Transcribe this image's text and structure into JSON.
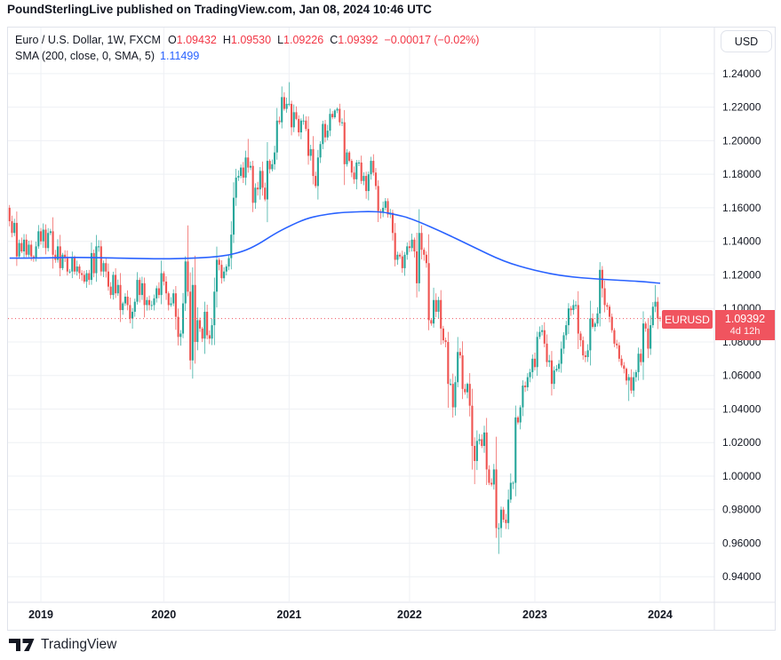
{
  "header": {
    "attribution": "PoundSterlingLive published on TradingView.com, Jan 08, 2024 10:46 UTC"
  },
  "legend": {
    "symbol_title": "Euro / U.S. Dollar, 1W, FXCM",
    "ohlc": [
      {
        "label": "O",
        "value": "1.09432"
      },
      {
        "label": "H",
        "value": "1.09530"
      },
      {
        "label": "L",
        "value": "1.09226"
      },
      {
        "label": "C",
        "value": "1.09392"
      }
    ],
    "change": "−0.00017 (−0.02%)",
    "sma_title": "SMA (200, close, 0, SMA, 5)",
    "sma_value": "1.11499"
  },
  "price_scale": {
    "currency_button": "USD",
    "ticks": [
      "1.24000",
      "1.22000",
      "1.20000",
      "1.18000",
      "1.16000",
      "1.14000",
      "1.12000",
      "1.10000",
      "1.08000",
      "1.06000",
      "1.04000",
      "1.02000",
      "1.00000",
      "0.98000",
      "0.96000",
      "0.94000"
    ],
    "last_price_label": {
      "price": "1.09392",
      "countdown": "4d 12h"
    }
  },
  "time_scale": {
    "ticks": [
      "2019",
      "2020",
      "2021",
      "2022",
      "2023",
      "2024"
    ]
  },
  "price_line": {
    "symbol_tag": "EURUSD",
    "price": 1.09392
  },
  "footer": {
    "brand": "TradingView"
  },
  "colors": {
    "up": "#26A69A",
    "down": "#EF5350",
    "sma": "#2962FF",
    "grid": "#EEF0F4",
    "separator": "#E0E3EB",
    "text": "#131722",
    "value_red": "#F23645",
    "price_line_red": "#F0545F"
  },
  "chart_data": {
    "type": "candlestick",
    "title": "Euro / U.S. Dollar, 1W, FXCM",
    "symbol": "EURUSD",
    "exchange": "FXCM",
    "interval": "1W",
    "ylabel": "USD",
    "ylim": [
      0.9253,
      1.2675
    ],
    "xlim_week_index": [
      -0.65,
      292.5
    ],
    "y_tick_prices": [
      1.24,
      1.22,
      1.2,
      1.18,
      1.16,
      1.14,
      1.12,
      1.1,
      1.08,
      1.06,
      1.04,
      1.02,
      1.0,
      0.98,
      0.96,
      0.94
    ],
    "year_tick_week_indices": [
      13,
      64,
      116,
      166,
      218,
      270
    ],
    "grid": true,
    "first_open": 1.16,
    "weekly_closes": [
      1.152,
      1.145,
      1.151,
      1.131,
      1.139,
      1.134,
      1.141,
      1.132,
      1.138,
      1.131,
      1.13,
      1.137,
      1.146,
      1.14,
      1.147,
      1.136,
      1.145,
      1.146,
      1.132,
      1.129,
      1.137,
      1.124,
      1.132,
      1.13,
      1.122,
      1.122,
      1.13,
      1.122,
      1.125,
      1.121,
      1.12,
      1.116,
      1.121,
      1.117,
      1.133,
      1.121,
      1.137,
      1.137,
      1.122,
      1.127,
      1.122,
      1.113,
      1.108,
      1.12,
      1.109,
      1.114,
      1.099,
      1.103,
      1.107,
      1.102,
      1.094,
      1.098,
      1.104,
      1.117,
      1.108,
      1.115,
      1.102,
      1.105,
      1.102,
      1.102,
      1.106,
      1.112,
      1.108,
      1.121,
      1.116,
      1.109,
      1.102,
      1.103,
      1.109,
      1.095,
      1.083,
      1.085,
      1.103,
      1.128,
      1.11,
      1.069,
      1.114,
      1.08,
      1.093,
      1.088,
      1.082,
      1.098,
      1.084,
      1.082,
      1.09,
      1.11,
      1.129,
      1.126,
      1.118,
      1.122,
      1.125,
      1.13,
      1.144,
      1.166,
      1.178,
      1.179,
      1.184,
      1.178,
      1.19,
      1.184,
      1.185,
      1.163,
      1.172,
      1.171,
      1.182,
      1.172,
      1.165,
      1.188,
      1.183,
      1.186,
      1.193,
      1.212,
      1.211,
      1.226,
      1.219,
      1.222,
      1.222,
      1.208,
      1.217,
      1.213,
      1.205,
      1.212,
      1.212,
      1.207,
      1.191,
      1.195,
      1.179,
      1.173,
      1.19,
      1.198,
      1.21,
      1.202,
      1.206,
      1.216,
      1.214,
      1.218,
      1.219,
      1.211,
      1.211,
      1.186,
      1.193,
      1.188,
      1.181,
      1.177,
      1.187,
      1.187,
      1.176,
      1.179,
      1.17,
      1.18,
      1.188,
      1.181,
      1.173,
      1.158,
      1.157,
      1.16,
      1.164,
      1.156,
      1.157,
      1.145,
      1.129,
      1.132,
      1.131,
      1.124,
      1.132,
      1.137,
      1.136,
      1.141,
      1.134,
      1.115,
      1.145,
      1.135,
      1.132,
      1.127,
      1.093,
      1.091,
      1.105,
      1.098,
      1.105,
      1.088,
      1.081,
      1.08,
      1.055,
      1.055,
      1.041,
      1.056,
      1.074,
      1.072,
      1.052,
      1.05,
      1.055,
      1.042,
      1.018,
      1.009,
      1.021,
      1.022,
      1.018,
      1.026,
      1.004,
      0.996,
      0.995,
      1.004,
      0.969,
      0.969,
      0.98,
      0.974,
      0.972,
      0.986,
      0.996,
      0.996,
      1.035,
      1.032,
      1.041,
      1.054,
      1.053,
      1.059,
      1.062,
      1.07,
      1.065,
      1.083,
      1.086,
      1.087,
      1.079,
      1.068,
      1.069,
      1.055,
      1.063,
      1.064,
      1.067,
      1.076,
      1.084,
      1.09,
      1.1,
      1.099,
      1.102,
      1.102,
      1.085,
      1.081,
      1.072,
      1.071,
      1.075,
      1.094,
      1.089,
      1.091,
      1.097,
      1.123,
      1.112,
      1.102,
      1.101,
      1.095,
      1.087,
      1.079,
      1.078,
      1.07,
      1.066,
      1.064,
      1.057,
      1.059,
      1.051,
      1.059,
      1.062,
      1.073,
      1.068,
      1.091,
      1.088,
      1.076,
      1.09,
      1.101,
      1.104,
      1.094,
      1.09392
    ],
    "overrides": {
      "51": {
        "l": 1.0879
      },
      "71": {
        "l": 1.0778
      },
      "74": {
        "h": 1.1495
      },
      "75": {
        "l": 1.0636
      },
      "99": {
        "h": 1.2011
      },
      "116": {
        "h": 1.2349
      },
      "171": {
        "h": 1.1495
      },
      "184": {
        "l": 1.0349
      },
      "193": {
        "l": 0.9952
      },
      "203": {
        "l": 0.9536
      },
      "245": {
        "h": 1.1276
      },
      "257": {
        "l": 1.0448
      },
      "268": {
        "h": 1.1139
      },
      "269": {
        "l": 1.0877
      },
      "270": {
        "o": 1.09432,
        "h": 1.0953,
        "l": 1.09226,
        "c": 1.09392
      }
    },
    "sma": {
      "name": "SMA (200, close, 0, SMA, 5)",
      "last_value": 1.11499,
      "points": [
        [
          0,
          1.13
        ],
        [
          13,
          1.13
        ],
        [
          26,
          1.1305
        ],
        [
          39,
          1.1302
        ],
        [
          51,
          1.1298
        ],
        [
          64,
          1.1295
        ],
        [
          77,
          1.13
        ],
        [
          83,
          1.1305
        ],
        [
          90,
          1.1315
        ],
        [
          97,
          1.134
        ],
        [
          103,
          1.138
        ],
        [
          110,
          1.1445
        ],
        [
          116,
          1.149
        ],
        [
          123,
          1.1535
        ],
        [
          129,
          1.1555
        ],
        [
          136,
          1.157
        ],
        [
          142,
          1.1575
        ],
        [
          149,
          1.1578
        ],
        [
          155,
          1.1575
        ],
        [
          160,
          1.156
        ],
        [
          166,
          1.154
        ],
        [
          179,
          1.146
        ],
        [
          192,
          1.137
        ],
        [
          205,
          1.128
        ],
        [
          218,
          1.1225
        ],
        [
          231,
          1.119
        ],
        [
          244,
          1.1175
        ],
        [
          257,
          1.1165
        ],
        [
          264,
          1.1158
        ],
        [
          270,
          1.115
        ]
      ]
    },
    "price_line_value": 1.09392
  }
}
